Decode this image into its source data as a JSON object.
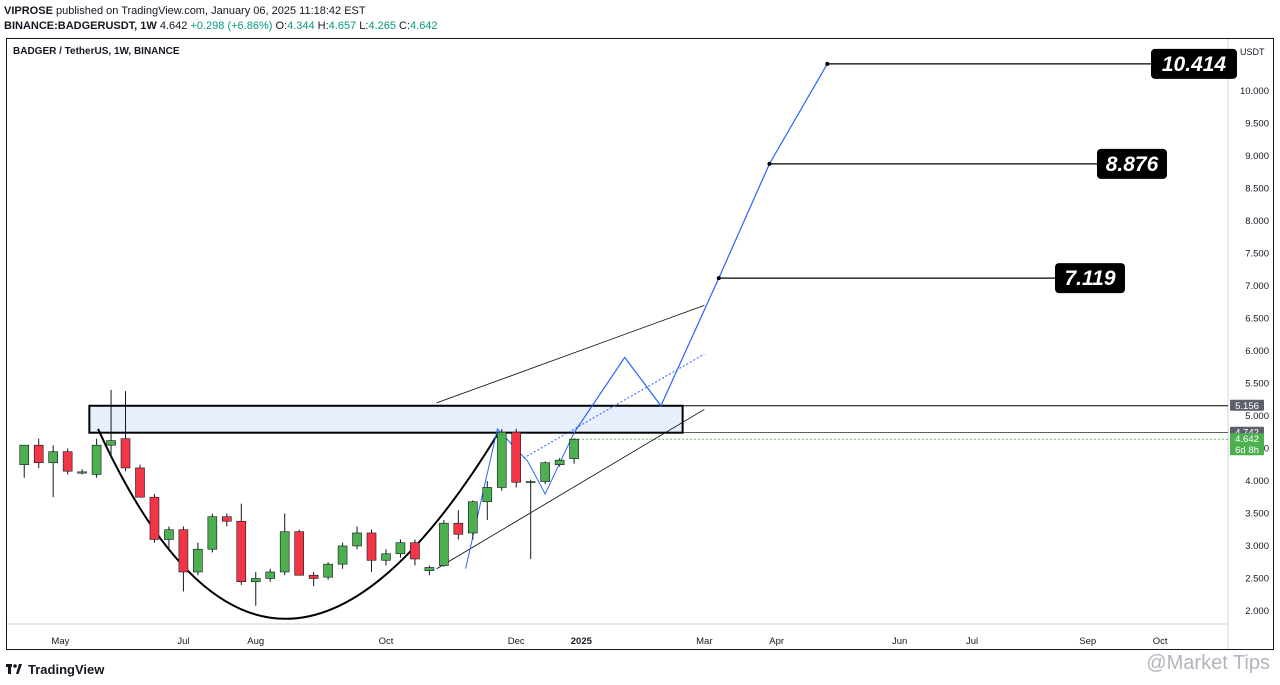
{
  "header": {
    "publisher": "VIPROSE",
    "published_text": "published on TradingView.com, January 06, 2025 11:18:42 EST",
    "symbol": "BINANCE:BADGERUSDT, 1W",
    "last": "4.642",
    "change": "+0.298 (+6.86%)",
    "o_label": "O:",
    "o": "4.344",
    "h_label": "H:",
    "h": "4.657",
    "l_label": "L:",
    "l": "4.265",
    "c_label": "C:",
    "c": "4.642"
  },
  "footer": {
    "brand": "TradingView",
    "watermark": "@Market Tips"
  },
  "colors": {
    "up": "#4caf50",
    "down": "#f23645",
    "line": "#2962ff",
    "zone": "#e8f0fe",
    "label_bg": "#000000"
  },
  "chart_data": {
    "type": "candlestick",
    "title": "BADGER / TetherUS, 1W, BINANCE",
    "currency": "USDT",
    "ylim": [
      1.8,
      10.75
    ],
    "y_ticks": [
      "2.000",
      "2.500",
      "3.000",
      "3.500",
      "4.000",
      "4.500",
      "5.000",
      "5.500",
      "6.000",
      "6.500",
      "7.000",
      "7.500",
      "8.000",
      "8.500",
      "9.000",
      "9.500",
      "10.000"
    ],
    "x_ticks": [
      {
        "week": 3,
        "label": "May"
      },
      {
        "week": 11.5,
        "label": "Jul"
      },
      {
        "week": 16.5,
        "label": "Aug"
      },
      {
        "week": 25.5,
        "label": "Oct"
      },
      {
        "week": 34.5,
        "label": "Dec"
      },
      {
        "week": 39,
        "label": "2025"
      },
      {
        "week": 47.5,
        "label": "Mar"
      },
      {
        "week": 52.5,
        "label": "Apr"
      },
      {
        "week": 61,
        "label": "Jun"
      },
      {
        "week": 66,
        "label": "Jul"
      },
      {
        "week": 74,
        "label": "Sep"
      },
      {
        "week": 79,
        "label": "Oct"
      }
    ],
    "candles": [
      {
        "o": 4.25,
        "h": 4.55,
        "l": 4.05,
        "c": 4.55
      },
      {
        "o": 4.55,
        "h": 4.65,
        "l": 4.2,
        "c": 4.28
      },
      {
        "o": 4.28,
        "h": 4.55,
        "l": 3.75,
        "c": 4.45
      },
      {
        "o": 4.45,
        "h": 4.5,
        "l": 4.1,
        "c": 4.15
      },
      {
        "o": 4.12,
        "h": 4.18,
        "l": 4.1,
        "c": 4.14
      },
      {
        "o": 4.1,
        "h": 4.65,
        "l": 4.05,
        "c": 4.55
      },
      {
        "o": 4.55,
        "h": 5.4,
        "l": 4.35,
        "c": 4.62
      },
      {
        "o": 4.65,
        "h": 5.38,
        "l": 4.15,
        "c": 4.2
      },
      {
        "o": 4.2,
        "h": 4.25,
        "l": 3.75,
        "c": 3.75
      },
      {
        "o": 3.75,
        "h": 3.8,
        "l": 3.05,
        "c": 3.1
      },
      {
        "o": 3.1,
        "h": 3.3,
        "l": 2.95,
        "c": 3.25
      },
      {
        "o": 3.25,
        "h": 3.3,
        "l": 2.3,
        "c": 2.6
      },
      {
        "o": 2.6,
        "h": 3.05,
        "l": 2.55,
        "c": 2.95
      },
      {
        "o": 2.95,
        "h": 3.5,
        "l": 2.9,
        "c": 3.45
      },
      {
        "o": 3.45,
        "h": 3.5,
        "l": 3.3,
        "c": 3.38
      },
      {
        "o": 3.38,
        "h": 3.65,
        "l": 2.4,
        "c": 2.45
      },
      {
        "o": 2.45,
        "h": 2.6,
        "l": 2.08,
        "c": 2.5
      },
      {
        "o": 2.5,
        "h": 2.65,
        "l": 2.45,
        "c": 2.6
      },
      {
        "o": 2.6,
        "h": 3.5,
        "l": 2.55,
        "c": 3.22
      },
      {
        "o": 3.22,
        "h": 3.25,
        "l": 2.55,
        "c": 2.55
      },
      {
        "o": 2.55,
        "h": 2.6,
        "l": 2.38,
        "c": 2.5
      },
      {
        "o": 2.52,
        "h": 2.75,
        "l": 2.48,
        "c": 2.72
      },
      {
        "o": 2.72,
        "h": 3.05,
        "l": 2.65,
        "c": 3.0
      },
      {
        "o": 3.0,
        "h": 3.3,
        "l": 2.95,
        "c": 3.2
      },
      {
        "o": 3.2,
        "h": 3.25,
        "l": 2.6,
        "c": 2.78
      },
      {
        "o": 2.78,
        "h": 2.95,
        "l": 2.7,
        "c": 2.88
      },
      {
        "o": 2.88,
        "h": 3.1,
        "l": 2.82,
        "c": 3.05
      },
      {
        "o": 3.05,
        "h": 3.1,
        "l": 2.7,
        "c": 2.8
      },
      {
        "o": 2.62,
        "h": 2.7,
        "l": 2.55,
        "c": 2.67
      },
      {
        "o": 2.7,
        "h": 3.4,
        "l": 2.68,
        "c": 3.35
      },
      {
        "o": 3.35,
        "h": 3.55,
        "l": 3.1,
        "c": 3.18
      },
      {
        "o": 3.2,
        "h": 3.7,
        "l": 3.1,
        "c": 3.68
      },
      {
        "o": 3.68,
        "h": 4.0,
        "l": 3.4,
        "c": 3.9
      },
      {
        "o": 3.9,
        "h": 4.8,
        "l": 3.85,
        "c": 4.75
      },
      {
        "o": 4.75,
        "h": 4.8,
        "l": 3.9,
        "c": 3.98
      },
      {
        "o": 3.98,
        "h": 4.02,
        "l": 2.8,
        "c": 3.99
      },
      {
        "o": 3.99,
        "h": 4.3,
        "l": 3.95,
        "c": 4.28
      },
      {
        "o": 4.25,
        "h": 4.35,
        "l": 4.22,
        "c": 4.32
      },
      {
        "o": 4.344,
        "h": 4.657,
        "l": 4.265,
        "c": 4.642
      }
    ],
    "resistance_zone": {
      "from_week": 5,
      "to_week": 46,
      "low": 4.742,
      "high": 5.156
    },
    "levels": [
      {
        "value": "5.156"
      },
      {
        "value": "4.742"
      },
      {
        "value": "4.642",
        "countdown": "6d 8h"
      }
    ],
    "targets": [
      {
        "week": 48.5,
        "price": 7.119,
        "label": "7.119"
      },
      {
        "week": 52,
        "price": 8.876,
        "label": "8.876"
      },
      {
        "week": 56,
        "price": 10.414,
        "label": "10.414"
      }
    ],
    "projection_path": [
      [
        38.5,
        4.742
      ],
      [
        42,
        5.9
      ],
      [
        44.5,
        5.156
      ],
      [
        48.5,
        7.119
      ],
      [
        52,
        8.876
      ],
      [
        56,
        10.414
      ]
    ],
    "cup_curve": {
      "start": [
        5.6,
        4.8
      ],
      "bottom": [
        18.5,
        1.88
      ],
      "end": [
        33.3,
        4.75
      ]
    },
    "channel_upper": [
      [
        29,
        5.2
      ],
      [
        47.5,
        6.7
      ]
    ],
    "channel_lower": [
      [
        29,
        2.65
      ],
      [
        47.5,
        5.1
      ]
    ]
  }
}
